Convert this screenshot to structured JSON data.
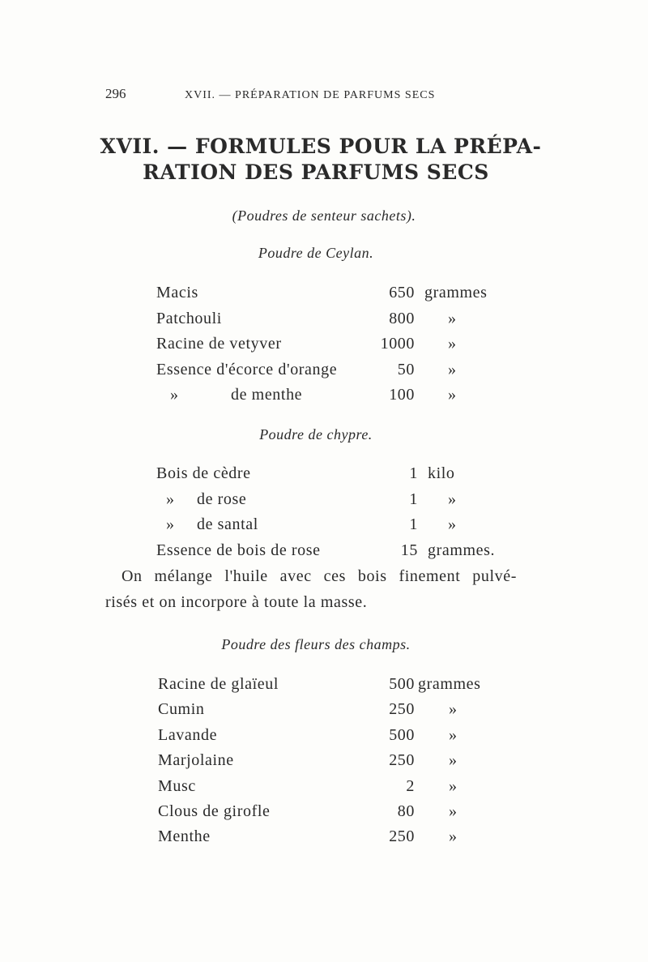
{
  "page_number": "296",
  "running_head": "XVII. — PRÉPARATION DE PARFUMS SECS",
  "chapter_title": {
    "line1": "XVII. — FORMULES POUR LA PRÉPA-",
    "line2": "RATION DES PARFUMS SECS"
  },
  "subtitle": "(Poudres de senteur sachets).",
  "ceylan": {
    "heading": "Poudre de Ceylan.",
    "rows": [
      {
        "name": "Macis",
        "qty": "650",
        "unit": "grammes"
      },
      {
        "name": "Patchouli",
        "qty": "800",
        "unit": "»"
      },
      {
        "name": "Racine de vetyver",
        "qty": "1000",
        "unit": "»"
      },
      {
        "name": "Essence d'écorce d'orange",
        "qty": "50",
        "unit": "»"
      },
      {
        "ditto": "»",
        "name": "de menthe",
        "qty": "100",
        "unit": "»"
      }
    ]
  },
  "chypre": {
    "heading": "Poudre de chypre.",
    "rows": [
      {
        "name": "Bois de cèdre",
        "qty": "1",
        "unit": "kilo"
      },
      {
        "ditto": "»",
        "name": "de rose",
        "qty": "1",
        "unit": "»"
      },
      {
        "ditto": "»",
        "name": "de santal",
        "qty": "1",
        "unit": "»"
      },
      {
        "name": "Essence de bois de rose",
        "qty": "15",
        "unit": "grammes."
      }
    ],
    "note_line1": "On mélange l'huile avec ces bois finement pulvé-",
    "note_line2": "risés et on incorpore à toute la masse."
  },
  "fleurs": {
    "heading": "Poudre des fleurs des champs.",
    "rows": [
      {
        "name": "Racine de glaïeul",
        "qty": "500",
        "unit": "grammes"
      },
      {
        "name": "Cumin",
        "qty": "250",
        "unit": "»"
      },
      {
        "name": "Lavande",
        "qty": "500",
        "unit": "»"
      },
      {
        "name": "Marjolaine",
        "qty": "250",
        "unit": "»"
      },
      {
        "name": "Musc",
        "qty": "2",
        "unit": "»"
      },
      {
        "name": "Clous de girofle",
        "qty": "80",
        "unit": "»"
      },
      {
        "name": "Menthe",
        "qty": "250",
        "unit": "»"
      }
    ]
  }
}
